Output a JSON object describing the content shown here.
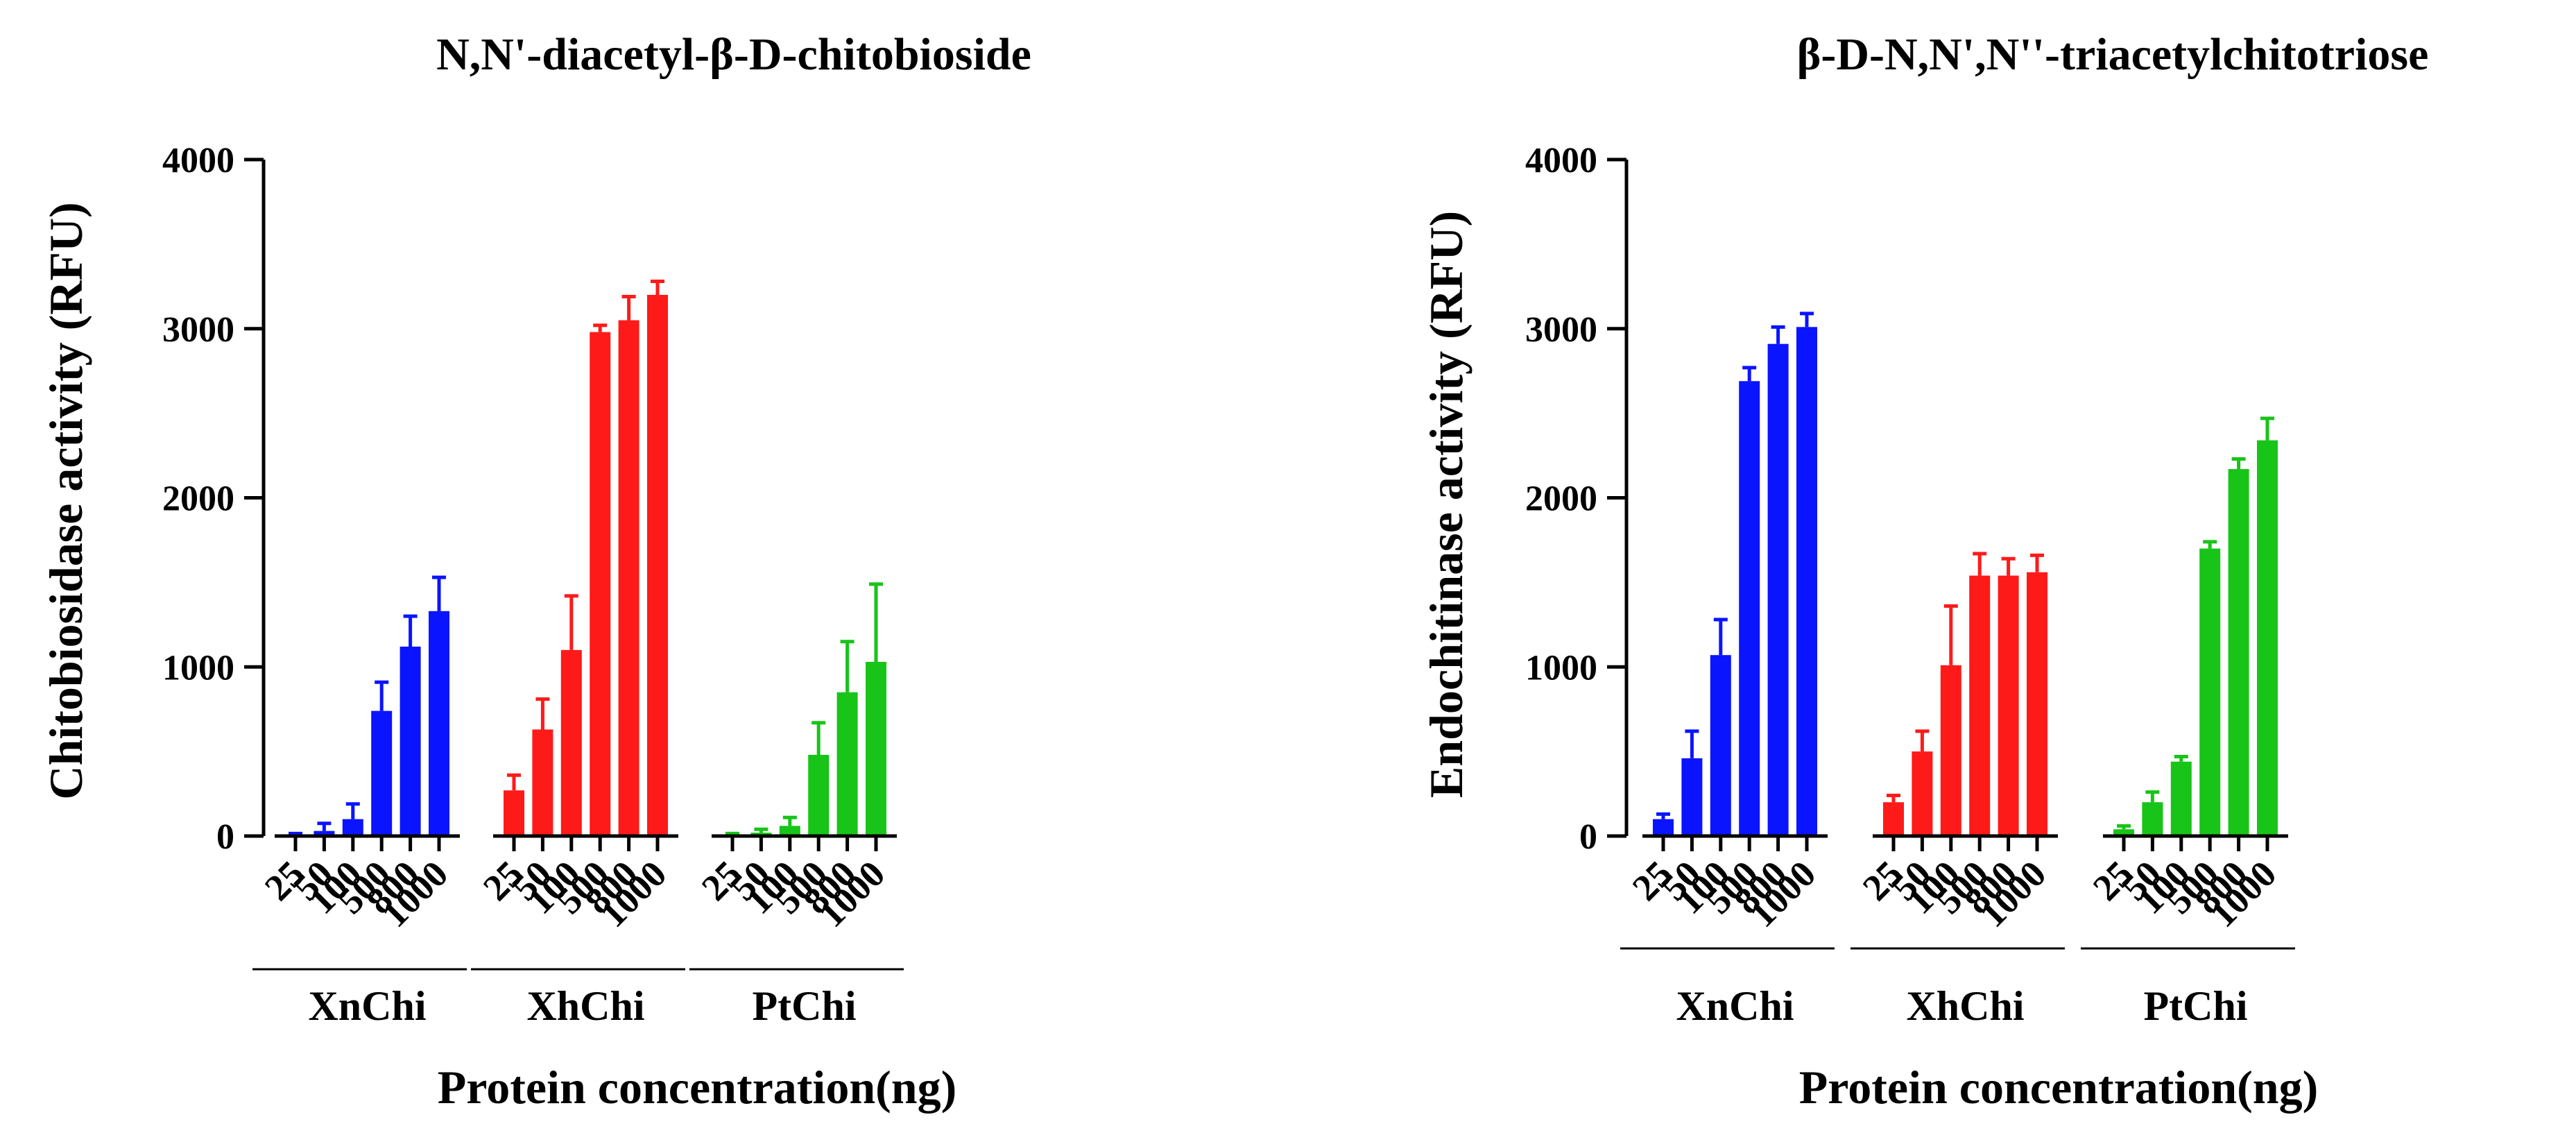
{
  "figure": {
    "colors": {
      "XnChi": "#0a14ff",
      "XhChi": "#ff1a1a",
      "PtChi": "#18c418",
      "axis": "#000000"
    }
  },
  "chart_data": [
    {
      "type": "bar",
      "title": "N,N'-diacetyl-β-D-chitobioside",
      "xlabel": "Protein concentration(ng)",
      "ylabel": "Chitobiosidase activity (RFU)",
      "ylim": [
        0,
        4000
      ],
      "yticks": [
        0,
        1000,
        2000,
        3000,
        4000
      ],
      "grid": false,
      "legend": "none",
      "categories": [
        "25",
        "50",
        "100",
        "500",
        "800",
        "1000"
      ],
      "series": [
        {
          "name": "XnChi",
          "color": "#0a14ff",
          "values": [
            5,
            30,
            100,
            740,
            1120,
            1330
          ],
          "errors": [
            10,
            45,
            90,
            170,
            180,
            200
          ]
        },
        {
          "name": "XhChi",
          "color": "#ff1a1a",
          "values": [
            270,
            630,
            1100,
            2980,
            3050,
            3200
          ],
          "errors": [
            90,
            180,
            320,
            40,
            140,
            80
          ]
        },
        {
          "name": "PtChi",
          "color": "#18c418",
          "values": [
            5,
            20,
            60,
            480,
            850,
            1030
          ],
          "errors": [
            10,
            20,
            50,
            190,
            300,
            460
          ]
        }
      ]
    },
    {
      "type": "bar",
      "title": "β-D-N,N',N''-triacetylchitotriose",
      "xlabel": "Protein concentration(ng)",
      "ylabel": "Endochitinase activity (RFU)",
      "ylim": [
        0,
        4000
      ],
      "yticks": [
        0,
        1000,
        2000,
        3000,
        4000
      ],
      "grid": false,
      "legend": "none",
      "categories": [
        "25",
        "50",
        "100",
        "500",
        "800",
        "1000"
      ],
      "series": [
        {
          "name": "XnChi",
          "color": "#0a14ff",
          "values": [
            100,
            460,
            1070,
            2690,
            2910,
            3010
          ],
          "errors": [
            30,
            160,
            210,
            80,
            100,
            80
          ]
        },
        {
          "name": "XhChi",
          "color": "#ff1a1a",
          "values": [
            200,
            500,
            1010,
            1540,
            1540,
            1560
          ],
          "errors": [
            40,
            120,
            350,
            130,
            100,
            100
          ]
        },
        {
          "name": "PtChi",
          "color": "#18c418",
          "values": [
            40,
            200,
            440,
            1700,
            2170,
            2340
          ],
          "errors": [
            20,
            60,
            30,
            40,
            60,
            130
          ]
        }
      ]
    }
  ]
}
